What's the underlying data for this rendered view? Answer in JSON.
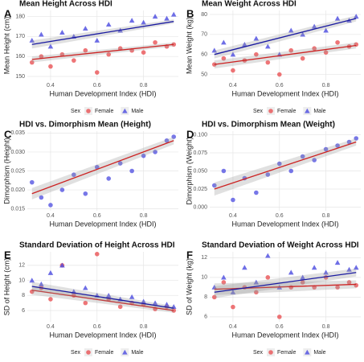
{
  "chart_data": [
    {
      "type": "scatter",
      "letter": "A",
      "title": "Mean Height Across HDI",
      "xlabel": "Human Development Index (HDI)",
      "ylabel": "Mean Height (cm)",
      "xlim": [
        0.3,
        0.95
      ],
      "xticks": [
        0.4,
        0.6,
        0.8
      ],
      "ylim": [
        148,
        183
      ],
      "yticks": [
        150,
        160,
        170,
        180
      ],
      "legend_title": "Sex",
      "series": [
        {
          "name": "Female",
          "color": "#e8474a",
          "marker": "circle",
          "trend_color": "#cc2222",
          "x": [
            0.32,
            0.36,
            0.4,
            0.45,
            0.5,
            0.55,
            0.6,
            0.65,
            0.7,
            0.75,
            0.8,
            0.85,
            0.9,
            0.93
          ],
          "values": [
            157,
            160,
            155,
            161,
            158,
            163,
            152,
            161,
            164,
            163,
            162,
            167,
            165,
            166
          ],
          "trend": [
            158.5,
            166
          ],
          "trend_lower": [
            157,
            165
          ],
          "trend_upper": [
            160,
            167
          ]
        },
        {
          "name": "Male",
          "color": "#4a4ae0",
          "marker": "triangle",
          "trend_color": "#1a1aa0",
          "x": [
            0.32,
            0.36,
            0.4,
            0.45,
            0.5,
            0.55,
            0.6,
            0.65,
            0.7,
            0.75,
            0.8,
            0.85,
            0.9,
            0.93
          ],
          "values": [
            168,
            171,
            165,
            172,
            170,
            174,
            168,
            176,
            173,
            178,
            177,
            180,
            179,
            181
          ],
          "trend": [
            166,
            177.5
          ],
          "trend_lower": [
            164,
            176.5
          ],
          "trend_upper": [
            168,
            178.5
          ]
        }
      ]
    },
    {
      "type": "scatter",
      "letter": "B",
      "title": "Mean Weight Across HDI",
      "xlabel": "Human Development Index (HDI)",
      "ylabel": "Mean Weight (kg)",
      "xlim": [
        0.3,
        0.95
      ],
      "xticks": [
        0.4,
        0.6,
        0.8
      ],
      "ylim": [
        47,
        82
      ],
      "yticks": [
        50,
        60,
        70,
        80
      ],
      "legend_title": "Sex",
      "series": [
        {
          "name": "Female",
          "color": "#e8474a",
          "marker": "circle",
          "trend_color": "#cc2222",
          "x": [
            0.32,
            0.36,
            0.4,
            0.45,
            0.5,
            0.55,
            0.6,
            0.65,
            0.7,
            0.75,
            0.8,
            0.85,
            0.9,
            0.93
          ],
          "values": [
            55,
            58,
            52,
            57,
            60,
            56,
            50,
            62,
            58,
            63,
            61,
            66,
            64,
            65
          ],
          "trend": [
            55,
            64.5
          ],
          "trend_lower": [
            53,
            63
          ],
          "trend_upper": [
            57,
            66
          ]
        },
        {
          "name": "Male",
          "color": "#4a4ae0",
          "marker": "triangle",
          "trend_color": "#1a1aa0",
          "x": [
            0.32,
            0.36,
            0.4,
            0.45,
            0.5,
            0.55,
            0.6,
            0.65,
            0.7,
            0.75,
            0.8,
            0.85,
            0.9,
            0.93
          ],
          "values": [
            62,
            66,
            60,
            65,
            68,
            64,
            60,
            72,
            70,
            74,
            72,
            78,
            77,
            79
          ],
          "trend": [
            60,
            78
          ],
          "trend_lower": [
            58,
            76.5
          ],
          "trend_upper": [
            62,
            79.5
          ]
        }
      ]
    },
    {
      "type": "scatter",
      "letter": "C",
      "title": "HDI vs. Dimorphism Mean (Height)",
      "xlabel": "Human Development Index (HDI)",
      "ylabel": "Dimorphism (Height)",
      "xlim": [
        0.3,
        0.95
      ],
      "xticks": [
        0.4,
        0.6,
        0.8
      ],
      "ylim": [
        0.0145,
        0.0355
      ],
      "yticks": [
        0.015,
        {
          "value": 0.02,
          "label": "0.020"
        },
        0.025,
        {
          "value": 0.03,
          "label": "0.030"
        },
        0.035
      ],
      "series": [
        {
          "color": "#4a4ae0",
          "marker": "circle",
          "trend_color": "#cc2222",
          "x": [
            0.32,
            0.36,
            0.4,
            0.45,
            0.5,
            0.55,
            0.6,
            0.65,
            0.7,
            0.75,
            0.8,
            0.85,
            0.9,
            0.93
          ],
          "values": [
            0.022,
            0.018,
            0.016,
            0.02,
            0.024,
            0.019,
            0.026,
            0.023,
            0.027,
            0.025,
            0.029,
            0.03,
            0.033,
            0.034
          ],
          "trend": [
            0.019,
            0.033
          ],
          "trend_lower": [
            0.0175,
            0.032
          ],
          "trend_upper": [
            0.0205,
            0.034
          ]
        }
      ]
    },
    {
      "type": "scatter",
      "letter": "D",
      "title": "HDI vs. Dimorphism Mean (Weight)",
      "xlabel": "Human Development Index (HDI)",
      "ylabel": "Dimorphism (Weight)",
      "xlim": [
        0.3,
        0.95
      ],
      "xticks": [
        0.4,
        0.6,
        0.8
      ],
      "ylim": [
        -0.005,
        0.105
      ],
      "yticks": [
        {
          "value": 0,
          "label": "0.000"
        },
        0.025,
        {
          "value": 0.05,
          "label": "0.050"
        },
        0.075,
        {
          "value": 0.1,
          "label": "0.100"
        }
      ],
      "series": [
        {
          "color": "#4a4ae0",
          "marker": "circle",
          "trend_color": "#cc2222",
          "x": [
            0.32,
            0.36,
            0.4,
            0.45,
            0.5,
            0.55,
            0.6,
            0.65,
            0.7,
            0.75,
            0.8,
            0.85,
            0.9,
            0.93
          ],
          "values": [
            0.03,
            0.05,
            0.01,
            0.04,
            0.02,
            0.045,
            0.06,
            0.05,
            0.07,
            0.065,
            0.08,
            0.085,
            0.09,
            0.095
          ],
          "trend": [
            0.025,
            0.09
          ],
          "trend_lower": [
            0.016,
            0.085
          ],
          "trend_upper": [
            0.034,
            0.095
          ]
        }
      ]
    },
    {
      "type": "scatter",
      "letter": "E",
      "title": "Standard Deviation of Height Across HDI",
      "xlabel": "Human Development Index (HDI)",
      "ylabel": "SD of Height (cm)",
      "xlim": [
        0.3,
        0.95
      ],
      "xticks": [
        0.4,
        0.6,
        0.8
      ],
      "ylim": [
        4.5,
        13.8
      ],
      "yticks": [
        6,
        8,
        10,
        12
      ],
      "legend_title": "Sex",
      "series": [
        {
          "name": "Female",
          "color": "#e8474a",
          "marker": "circle",
          "trend_color": "#cc2222",
          "x": [
            0.32,
            0.36,
            0.4,
            0.45,
            0.5,
            0.55,
            0.6,
            0.65,
            0.7,
            0.75,
            0.8,
            0.85,
            0.9,
            0.93
          ],
          "values": [
            8.5,
            9,
            7.5,
            12,
            8,
            7,
            13.5,
            7.5,
            6.5,
            7,
            6.8,
            6.2,
            6.5,
            6
          ],
          "trend": [
            8.7,
            6
          ],
          "trend_lower": [
            8.1,
            5.7
          ],
          "trend_upper": [
            9.3,
            6.3
          ]
        },
        {
          "name": "Male",
          "color": "#4a4ae0",
          "marker": "triangle",
          "trend_color": "#1a1aa0",
          "x": [
            0.32,
            0.36,
            0.4,
            0.45,
            0.5,
            0.55,
            0.6,
            0.65,
            0.7,
            0.75,
            0.8,
            0.85,
            0.9,
            0.93
          ],
          "values": [
            10,
            9.5,
            11,
            12,
            8.5,
            9,
            8,
            8,
            7.5,
            7.8,
            7.2,
            7,
            6.8,
            6.5
          ],
          "trend": [
            9.2,
            6.3
          ],
          "trend_lower": [
            8.6,
            6
          ],
          "trend_upper": [
            9.8,
            6.6
          ]
        }
      ]
    },
    {
      "type": "scatter",
      "letter": "F",
      "title": "Standard Deviation of Weight Across HDI",
      "xlabel": "Human Development Index (HDI)",
      "ylabel": "SD of Weight (kg)",
      "xlim": [
        0.3,
        0.95
      ],
      "xticks": [
        0.4,
        0.6,
        0.8
      ],
      "ylim": [
        5.5,
        12.6
      ],
      "yticks": [
        6,
        8,
        10,
        12
      ],
      "legend_title": "Sex",
      "series": [
        {
          "name": "Female",
          "color": "#e8474a",
          "marker": "circle",
          "trend_color": "#cc2222",
          "x": [
            0.32,
            0.36,
            0.4,
            0.45,
            0.5,
            0.55,
            0.6,
            0.65,
            0.7,
            0.75,
            0.8,
            0.85,
            0.9,
            0.93
          ],
          "values": [
            8,
            9.5,
            7,
            9,
            8.5,
            10,
            6,
            9,
            9.5,
            9,
            10,
            9,
            9.5,
            9.2
          ],
          "trend": [
            8.8,
            9.3
          ],
          "trend_lower": [
            8.2,
            8.9
          ],
          "trend_upper": [
            9.4,
            9.7
          ]
        },
        {
          "name": "Male",
          "color": "#4a4ae0",
          "marker": "triangle",
          "trend_color": "#1a1aa0",
          "x": [
            0.32,
            0.36,
            0.4,
            0.45,
            0.5,
            0.55,
            0.6,
            0.65,
            0.7,
            0.75,
            0.8,
            0.85,
            0.9,
            0.93
          ],
          "values": [
            9,
            10,
            8.5,
            11,
            9.5,
            12.2,
            9,
            10.5,
            10,
            11,
            10.5,
            11.5,
            10.8,
            11
          ],
          "trend": [
            8.5,
            10.5
          ],
          "trend_lower": [
            7.9,
            10.1
          ],
          "trend_upper": [
            9.1,
            10.9
          ]
        }
      ]
    }
  ]
}
